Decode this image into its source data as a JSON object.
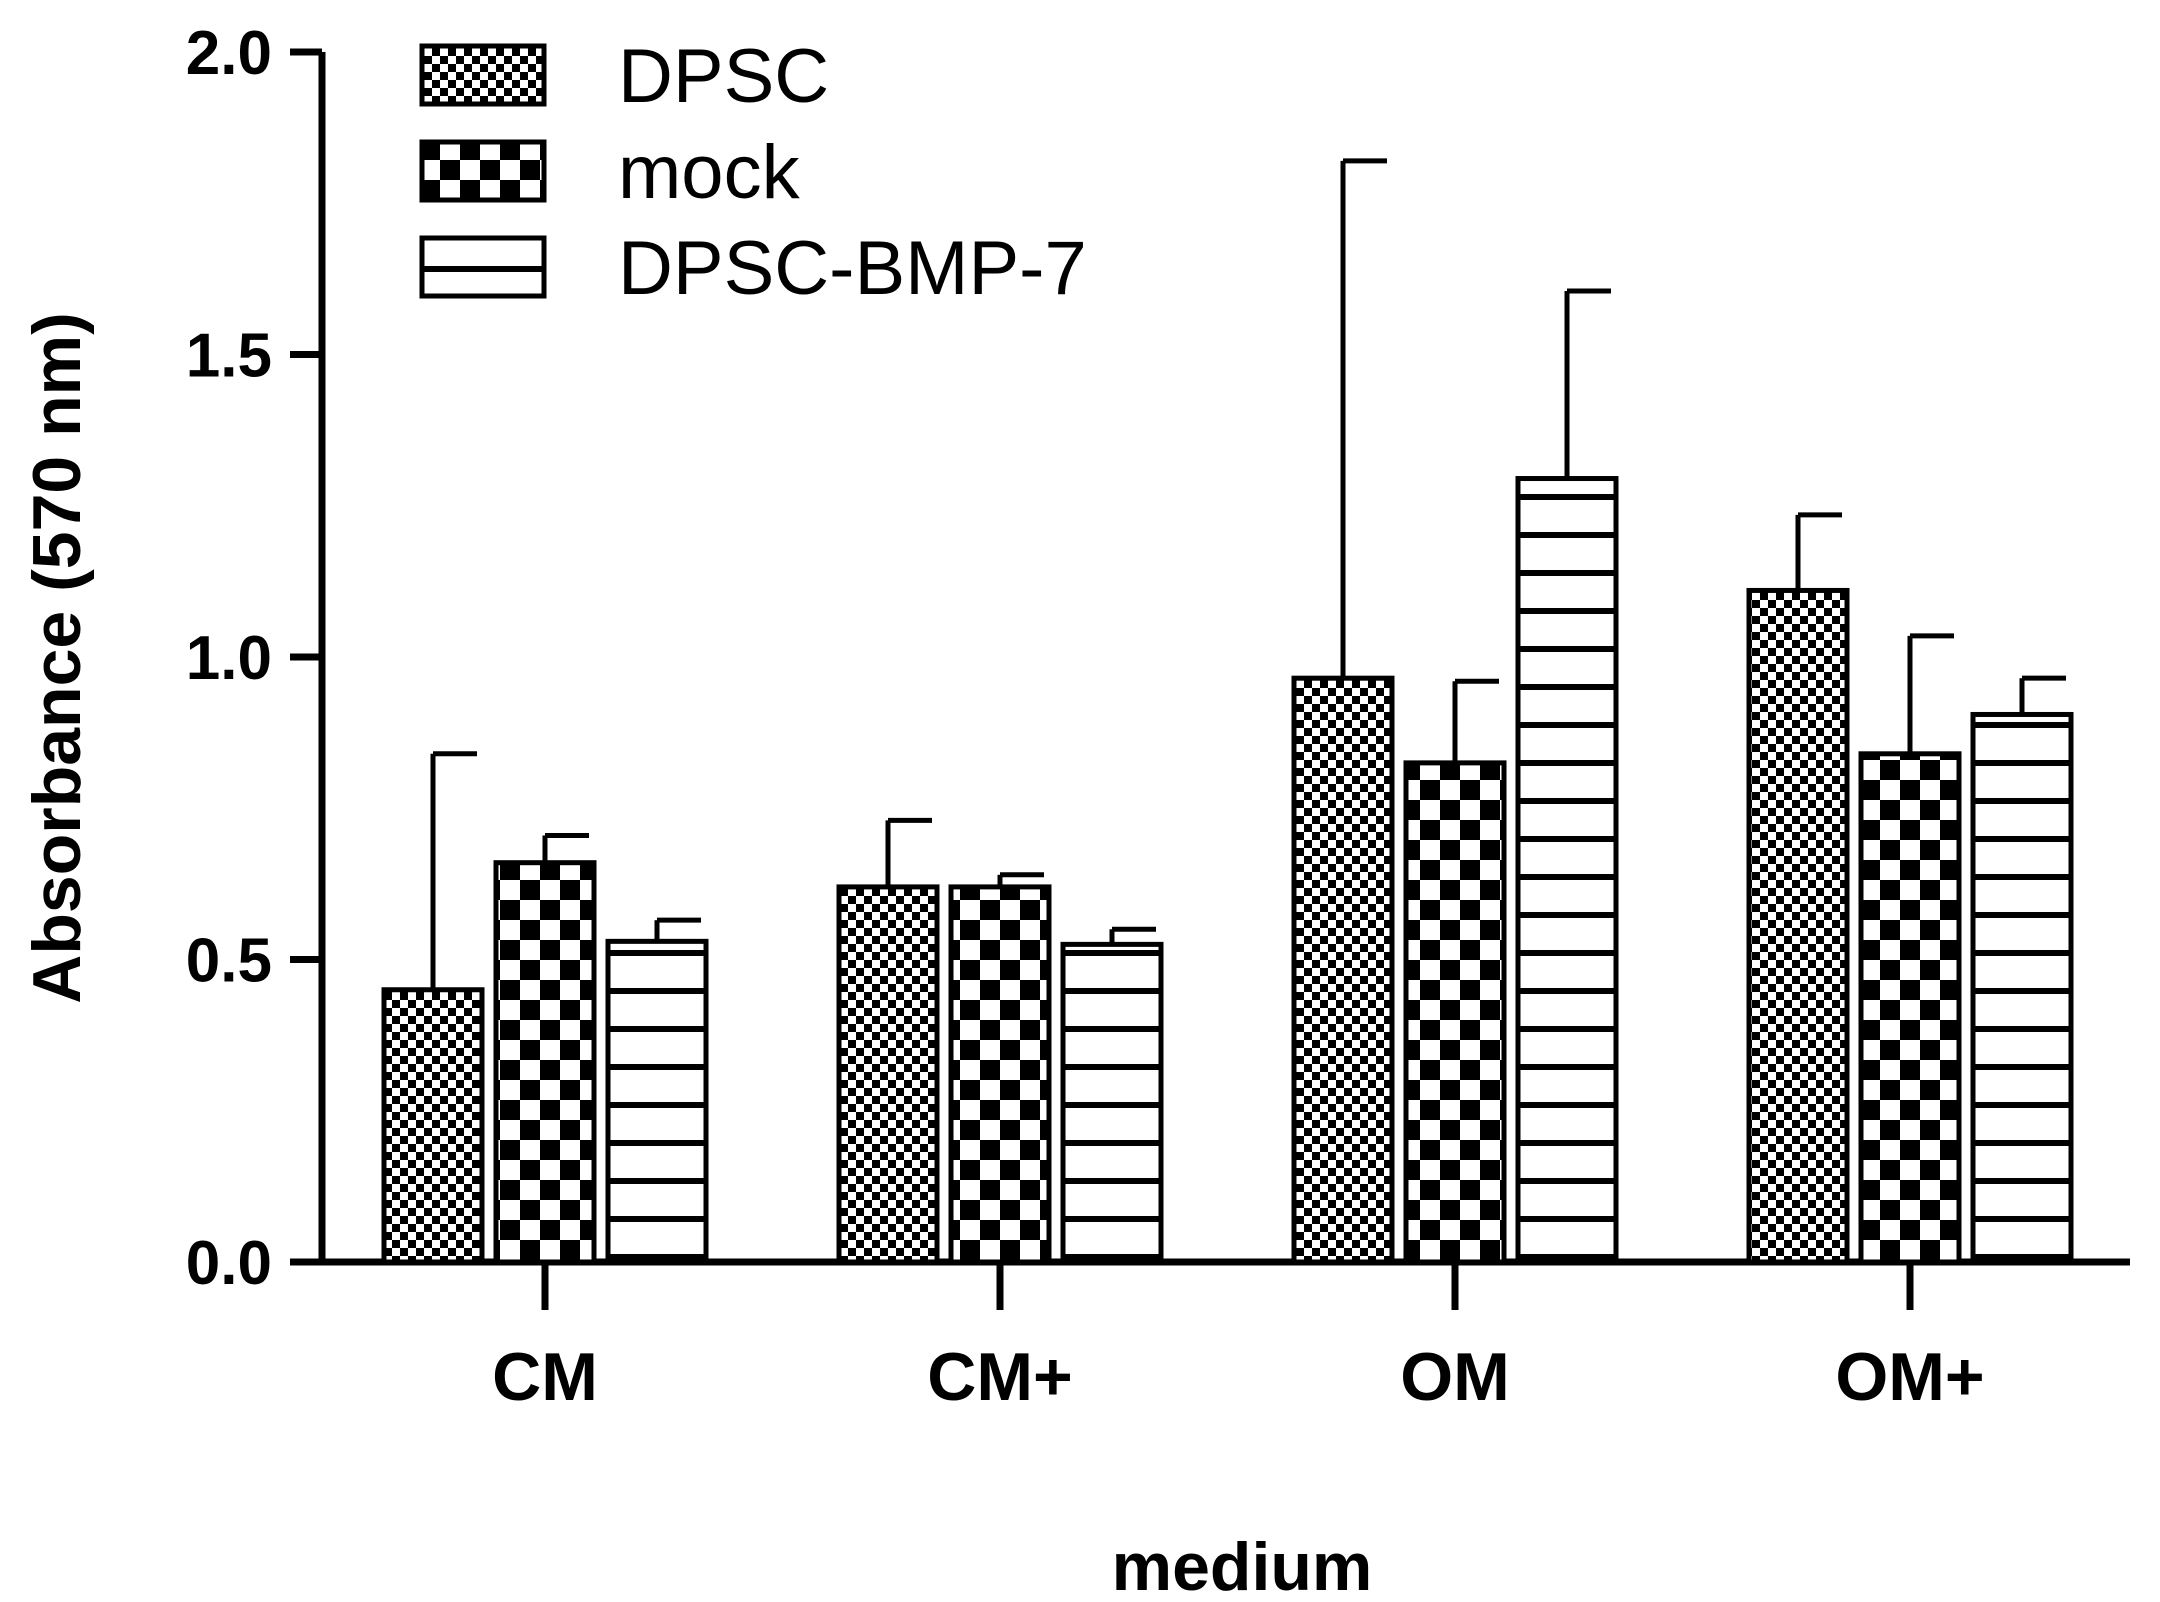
{
  "chart_data": {
    "type": "bar",
    "title": "",
    "xlabel": "medium",
    "ylabel": "Absorbance (570 nm)",
    "ylim": [
      0,
      2.0
    ],
    "yticks": [
      "0.0",
      "0.5",
      "1.0",
      "1.5",
      "2.0"
    ],
    "categories": [
      "CM",
      "CM+",
      "OM",
      "OM+"
    ],
    "series": [
      {
        "name": "DPSC",
        "pattern": "fine-checker",
        "values": [
          0.45,
          0.62,
          0.965,
          1.11
        ],
        "errors": [
          0.39,
          0.11,
          0.855,
          0.125
        ]
      },
      {
        "name": "mock",
        "pattern": "coarse-checker",
        "values": [
          0.66,
          0.62,
          0.825,
          0.84
        ],
        "errors": [
          0.045,
          0.02,
          0.135,
          0.195
        ]
      },
      {
        "name": "DPSC-BMP-7",
        "pattern": "horizontal-stripes",
        "values": [
          0.53,
          0.525,
          1.295,
          0.905
        ],
        "errors": [
          0.035,
          0.025,
          0.31,
          0.06
        ]
      }
    ],
    "legend_position": "top-left",
    "colors": {
      "ink": "#000000",
      "background": "#ffffff"
    }
  }
}
